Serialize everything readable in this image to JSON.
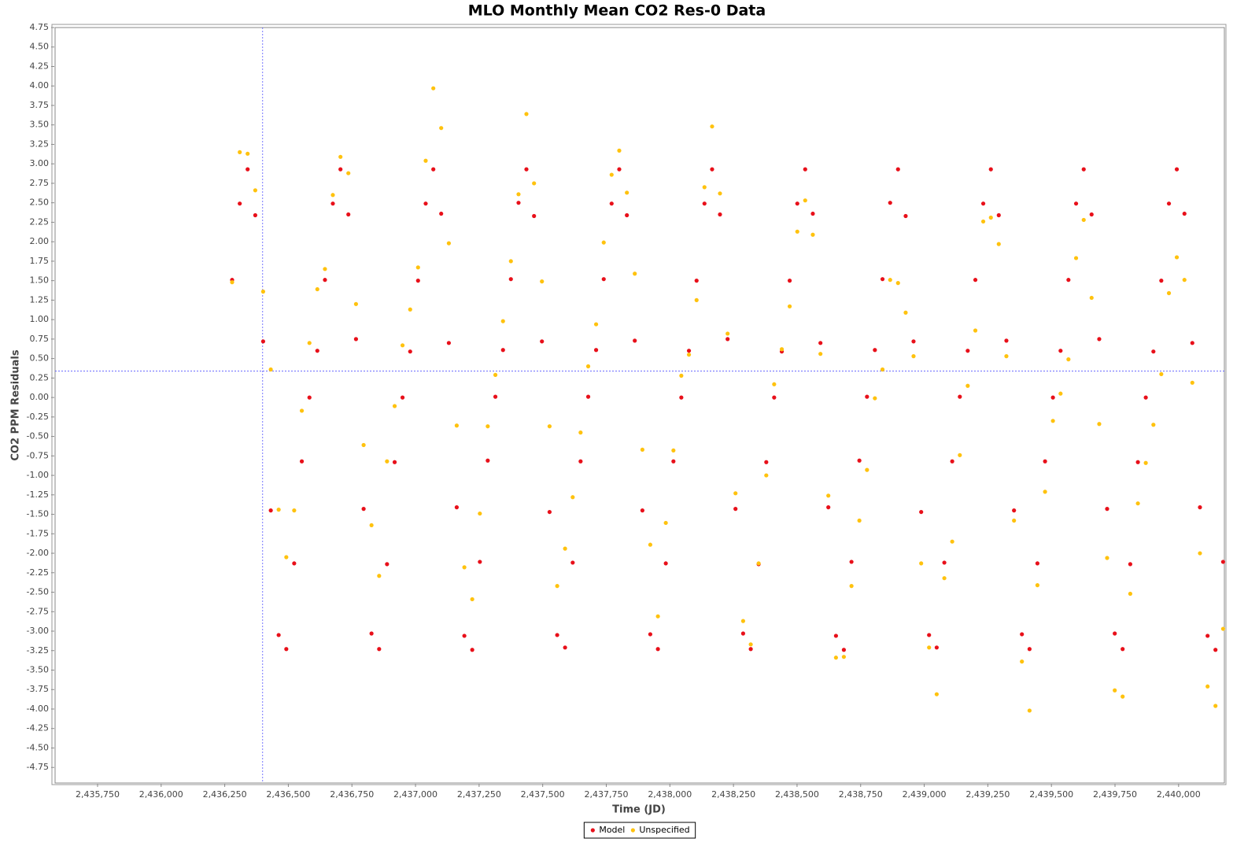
{
  "chart_data": {
    "type": "scatter",
    "title": "MLO Monthly Mean CO2 Res-0 Data",
    "x_label": "Time (JD)",
    "y_label": "CO2 PPM Residuals",
    "xlim": [
      2435583,
      2440180
    ],
    "ylim": [
      -4.95,
      4.75
    ],
    "xticks": [
      {
        "value": 2435750,
        "label": "2,435,750"
      },
      {
        "value": 2436000,
        "label": "2,436,000"
      },
      {
        "value": 2436250,
        "label": "2,436,250"
      },
      {
        "value": 2436500,
        "label": "2,436,500"
      },
      {
        "value": 2436750,
        "label": "2,436,750"
      },
      {
        "value": 2437000,
        "label": "2,437,000"
      },
      {
        "value": 2437250,
        "label": "2,437,250"
      },
      {
        "value": 2437500,
        "label": "2,437,500"
      },
      {
        "value": 2437750,
        "label": "2,437,750"
      },
      {
        "value": 2438000,
        "label": "2,438,000"
      },
      {
        "value": 2438250,
        "label": "2,438,250"
      },
      {
        "value": 2438500,
        "label": "2,438,500"
      },
      {
        "value": 2438750,
        "label": "2,438,750"
      },
      {
        "value": 2439000,
        "label": "2,439,000"
      },
      {
        "value": 2439250,
        "label": "2,439,250"
      },
      {
        "value": 2439500,
        "label": "2,439,500"
      },
      {
        "value": 2439750,
        "label": "2,439,750"
      },
      {
        "value": 2440000,
        "label": "2,440,000"
      }
    ],
    "yticks": [
      4.75,
      {
        "value": 4.5,
        "label": "4.50"
      },
      4.25,
      {
        "value": 4,
        "label": "4.00"
      },
      3.75,
      {
        "value": 3.5,
        "label": "3.50"
      },
      3.25,
      {
        "value": 3,
        "label": "3.00"
      },
      2.75,
      {
        "value": 2.5,
        "label": "2.50"
      },
      2.25,
      {
        "value": 2,
        "label": "2.00"
      },
      1.75,
      {
        "value": 1.5,
        "label": "1.50"
      },
      1.25,
      {
        "value": 1,
        "label": "1.00"
      },
      0.75,
      {
        "value": 0.5,
        "label": "0.50"
      },
      0.25,
      {
        "value": 0,
        "label": "0.00"
      },
      -0.25,
      {
        "value": -0.5,
        "label": "-0.50"
      },
      -0.75,
      {
        "value": -1,
        "label": "-1.00"
      },
      -1.25,
      {
        "value": -1.5,
        "label": "-1.50"
      },
      -1.75,
      {
        "value": -2,
        "label": "-2.00"
      },
      -2.25,
      {
        "value": -2.5,
        "label": "-2.50"
      },
      -2.75,
      {
        "value": -3,
        "label": "-3.00"
      },
      -3.25,
      {
        "value": -3.5,
        "label": "-3.50"
      },
      -3.75,
      {
        "value": -4,
        "label": "-4.00"
      },
      -4.25,
      {
        "value": -4.5,
        "label": "-4.50"
      },
      -4.75
    ],
    "crosshair": {
      "x": 2436399,
      "y": 0.34
    },
    "legend": "bottom",
    "x": [
      2436279,
      2436309,
      2436340,
      2436370,
      2436401,
      2436431,
      2436462,
      2436492,
      2436523,
      2436553,
      2436583,
      2436614,
      2436644,
      2436675,
      2436705,
      2436736,
      2436766,
      2436796,
      2436827,
      2436857,
      2436888,
      2436918,
      2436949,
      2436979,
      2437010,
      2437040,
      2437070,
      2437101,
      2437131,
      2437162,
      2437192,
      2437223,
      2437253,
      2437284,
      2437314,
      2437344,
      2437375,
      2437405,
      2437436,
      2437466,
      2437497,
      2437527,
      2437557,
      2437588,
      2437618,
      2437649,
      2437679,
      2437710,
      2437740,
      2437771,
      2437801,
      2437831,
      2437862,
      2437892,
      2437923,
      2437953,
      2437984,
      2438014,
      2438045,
      2438075,
      2438105,
      2438136,
      2438166,
      2438197,
      2438227,
      2438258,
      2438288,
      2438318,
      2438349,
      2438379,
      2438410,
      2438440,
      2438471,
      2438501,
      2438532,
      2438562,
      2438592,
      2438623,
      2438653,
      2438684,
      2438714,
      2438745,
      2438775,
      2438806,
      2438836,
      2438866,
      2438897,
      2438927,
      2438958,
      2438988,
      2439019,
      2439049,
      2439079,
      2439110,
      2439140,
      2439171,
      2439201,
      2439232,
      2439262,
      2439293,
      2439323,
      2439353,
      2439384,
      2439414,
      2439445,
      2439475,
      2439506,
      2439536,
      2439567,
      2439597,
      2439627,
      2439658,
      2439688,
      2439719,
      2439749,
      2439780,
      2439810,
      2439840,
      2439871,
      2439901,
      2439932,
      2439962,
      2439993,
      2440023,
      2440054,
      2440084,
      2440114,
      2440145,
      2440175
    ],
    "series": [
      {
        "name": "Model",
        "color": "#e8101a",
        "values": [
          1.51,
          2.49,
          2.93,
          2.34,
          0.72,
          -1.45,
          -3.05,
          -3.23,
          -2.13,
          -0.82,
          0.0,
          0.6,
          1.51,
          2.49,
          2.93,
          2.35,
          0.75,
          -1.43,
          -3.03,
          -3.23,
          -2.14,
          -0.83,
          0.0,
          0.59,
          1.5,
          2.49,
          2.93,
          2.36,
          0.7,
          -1.41,
          -3.06,
          -3.24,
          -2.11,
          -0.81,
          0.01,
          0.61,
          1.52,
          2.5,
          2.93,
          2.33,
          0.72,
          -1.47,
          -3.05,
          -3.21,
          -2.12,
          -0.82,
          0.01,
          0.61,
          1.52,
          2.49,
          2.93,
          2.34,
          0.73,
          -1.45,
          -3.04,
          -3.23,
          -2.13,
          -0.82,
          0.0,
          0.6,
          1.5,
          2.49,
          2.93,
          2.35,
          0.75,
          -1.43,
          -3.03,
          -3.23,
          -2.14,
          -0.83,
          0.0,
          0.59,
          1.5,
          2.49,
          2.93,
          2.36,
          0.7,
          -1.41,
          -3.06,
          -3.24,
          -2.11,
          -0.81,
          0.01,
          0.61,
          1.52,
          2.5,
          2.93,
          2.33,
          0.72,
          -1.47,
          -3.05,
          -3.21,
          -2.12,
          -0.82,
          0.01,
          0.6,
          1.51,
          2.49,
          2.93,
          2.34,
          0.73,
          -1.45,
          -3.04,
          -3.23,
          -2.13,
          -0.82,
          0.0,
          0.6,
          1.51,
          2.49,
          2.93,
          2.35,
          0.75,
          -1.43,
          -3.03,
          -3.23,
          -2.14,
          -0.83,
          0.0,
          0.59,
          1.5,
          2.49,
          2.93,
          2.36,
          0.7,
          -1.41,
          -3.06,
          -3.24,
          -2.11
        ]
      },
      {
        "name": "Unspecified",
        "color": "#ffc20e",
        "values": [
          1.48,
          3.15,
          3.13,
          2.66,
          1.36,
          0.36,
          -1.44,
          -2.05,
          -1.45,
          -0.17,
          0.7,
          1.39,
          1.65,
          2.6,
          3.09,
          2.88,
          1.2,
          -0.61,
          -1.64,
          -2.29,
          -0.82,
          -0.11,
          0.67,
          1.13,
          1.67,
          3.04,
          3.97,
          3.46,
          1.98,
          -0.36,
          -2.18,
          -2.59,
          -1.49,
          -0.37,
          0.29,
          0.98,
          1.75,
          2.61,
          3.64,
          2.75,
          1.49,
          -0.37,
          -2.42,
          -1.94,
          -1.28,
          -0.45,
          0.4,
          0.94,
          1.99,
          2.86,
          3.17,
          2.63,
          1.59,
          -0.67,
          -1.89,
          -2.81,
          -1.61,
          -0.68,
          0.28,
          0.55,
          1.25,
          2.7,
          3.48,
          2.62,
          0.82,
          -1.23,
          -2.87,
          -3.17,
          -2.13,
          -1.0,
          0.17,
          0.62,
          1.17,
          2.13,
          2.53,
          2.09,
          0.56,
          -1.26,
          -3.34,
          -3.33,
          -2.42,
          -1.58,
          -0.93,
          -0.01,
          0.36,
          1.51,
          1.47,
          1.09,
          0.53,
          -2.13,
          -3.21,
          -3.81,
          -2.32,
          -1.85,
          -0.74,
          0.15,
          0.86,
          2.26,
          2.31,
          1.97,
          0.53,
          -1.58,
          -3.39,
          -4.02,
          -2.41,
          -1.21,
          -0.3,
          0.05,
          0.49,
          1.79,
          2.28,
          1.28,
          -0.34,
          -2.06,
          -3.76,
          -3.84,
          -2.52,
          -1.36,
          -0.84,
          -0.35,
          0.3,
          1.34,
          1.8,
          1.51,
          0.19,
          -2.0,
          -3.71,
          -3.96,
          -2.97
        ]
      }
    ]
  }
}
